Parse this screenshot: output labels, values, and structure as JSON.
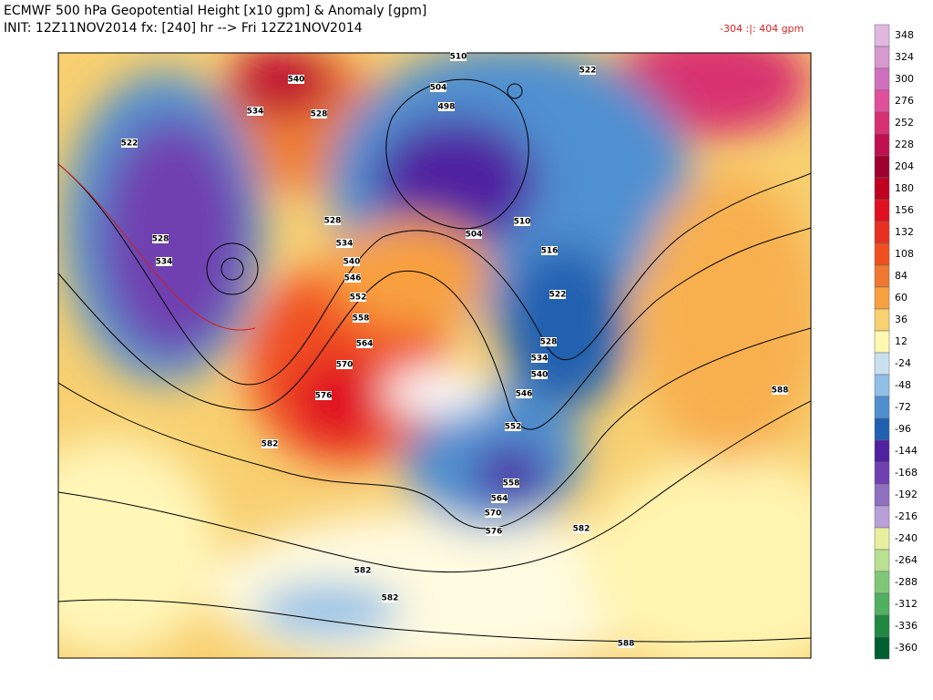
{
  "header": {
    "title": "ECMWF 500 hPa Geopotential Height [x10 gpm] & Anomaly [gpm]",
    "init": "INIT: 12Z11NOV2014 fx: [240] hr --> Fri 12Z21NOV2014",
    "range": "-304 :|:  404 gpm"
  },
  "colorbar": {
    "ticks": [
      348,
      324,
      300,
      276,
      252,
      228,
      204,
      180,
      156,
      132,
      108,
      84,
      60,
      36,
      12,
      -24,
      -48,
      -72,
      -96,
      -144,
      -168,
      -192,
      -216,
      -240,
      -264,
      -288,
      -312,
      -336,
      -360
    ],
    "colors": [
      "#e0b8e0",
      "#d898d0",
      "#d070c0",
      "#e0509a",
      "#d83070",
      "#c01050",
      "#a00030",
      "#c00020",
      "#e01020",
      "#e83020",
      "#f05020",
      "#f07830",
      "#f8a040",
      "#f8d070",
      "#fff8b0",
      "#c8e0f0",
      "#90c0e8",
      "#5090d0",
      "#2060b0",
      "#5020a0",
      "#7040b0",
      "#9070c0",
      "#b8a0d8",
      "#e8f0a0",
      "#b8e090",
      "#80c878",
      "#50b060",
      "#208840",
      "#006030"
    ]
  },
  "contour_labels": [
    540,
    534,
    528,
    522,
    528,
    534,
    528,
    534,
    540,
    546,
    552,
    558,
    564,
    570,
    576,
    582,
    510,
    504,
    498,
    504,
    510,
    516,
    522,
    528,
    534,
    540,
    546,
    552,
    558,
    564,
    570,
    576,
    582,
    582,
    582,
    588,
    588,
    522
  ]
}
